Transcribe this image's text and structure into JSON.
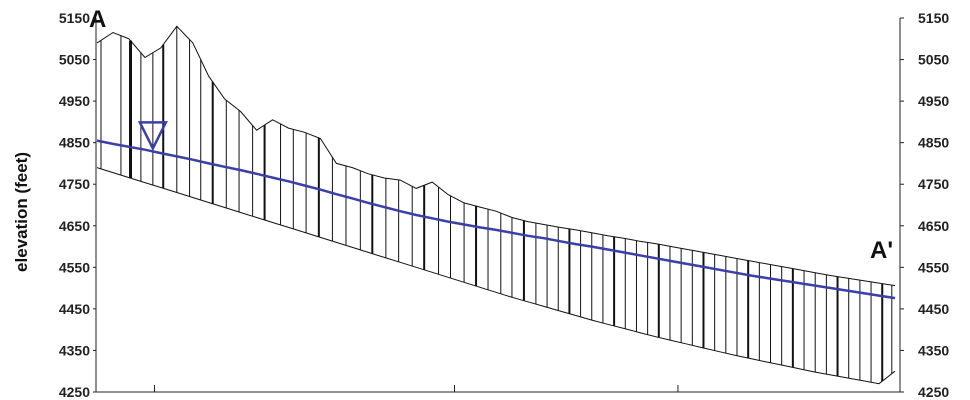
{
  "chart_data": {
    "type": "line",
    "title": "",
    "ylabel": "elevation (feet)",
    "ylim": [
      4250,
      5150
    ],
    "yticks": [
      4250,
      4350,
      4450,
      4550,
      4650,
      4750,
      4850,
      4950,
      5050,
      5150
    ],
    "right_axis": true,
    "grid": false,
    "endpoints": {
      "start": "A",
      "end": "A'"
    },
    "water_table_symbol": "inverted-triangle",
    "colors": {
      "water_table": "#3b3fa8",
      "profile": "#111111",
      "axis": "#222222"
    },
    "x": [
      0,
      2,
      4,
      6,
      8,
      10,
      12,
      14,
      16,
      18,
      20,
      22,
      24,
      26,
      28,
      30,
      32,
      34,
      36,
      38,
      40,
      42,
      44,
      46,
      48,
      50,
      52,
      54,
      56,
      58,
      60,
      62,
      64,
      66,
      68,
      70,
      72,
      74,
      76,
      78,
      80,
      82,
      84,
      86,
      88,
      90,
      92,
      94,
      96,
      98,
      100
    ],
    "series": [
      {
        "role": "ground-surface",
        "values": [
          5090,
          5115,
          5100,
          5055,
          5078,
          5130,
          5090,
          5010,
          4955,
          4925,
          4880,
          4905,
          4885,
          4875,
          4860,
          4800,
          4790,
          4775,
          4765,
          4760,
          4740,
          4755,
          4725,
          4705,
          4695,
          4685,
          4670,
          4660,
          4653,
          4646,
          4640,
          4633,
          4626,
          4620,
          4613,
          4607,
          4600,
          4593,
          4586,
          4579,
          4572,
          4565,
          4558,
          4551,
          4544,
          4537,
          4530,
          4524,
          4518,
          4512,
          4506
        ]
      },
      {
        "role": "water-table",
        "values": [
          4855,
          4847,
          4840,
          4833,
          4825,
          4817,
          4809,
          4800,
          4792,
          4784,
          4775,
          4766,
          4757,
          4747,
          4737,
          4726,
          4716,
          4705,
          4695,
          4685,
          4676,
          4668,
          4660,
          4653,
          4646,
          4640,
          4633,
          4626,
          4620,
          4613,
          4606,
          4600,
          4593,
          4586,
          4579,
          4572,
          4565,
          4558,
          4551,
          4544,
          4537,
          4530,
          4524,
          4518,
          4512,
          4506,
          4500,
          4494,
          4488,
          4482,
          4476
        ]
      },
      {
        "role": "screen-bottom",
        "values": [
          4790,
          4778,
          4766,
          4754,
          4742,
          4730,
          4718,
          4706,
          4694,
          4682,
          4670,
          4658,
          4646,
          4634,
          4622,
          4610,
          4598,
          4586,
          4574,
          4562,
          4550,
          4538,
          4526,
          4514,
          4502,
          4490,
          4478,
          4467,
          4456,
          4445,
          4434,
          4423,
          4413,
          4403,
          4393,
          4383,
          4374,
          4365,
          4356,
          4347,
          4338,
          4330,
          4322,
          4314,
          4306,
          4298,
          4291,
          4284,
          4277,
          4270,
          4300
        ]
      }
    ],
    "wells": [
      {
        "x": 0.5,
        "w": 1
      },
      {
        "x": 3,
        "w": 1
      },
      {
        "x": 4.2,
        "w": 3
      },
      {
        "x": 5.5,
        "w": 1
      },
      {
        "x": 7,
        "w": 1
      },
      {
        "x": 8.3,
        "w": 2
      },
      {
        "x": 10,
        "w": 1
      },
      {
        "x": 11.6,
        "w": 1
      },
      {
        "x": 13,
        "w": 1
      },
      {
        "x": 14.5,
        "w": 2
      },
      {
        "x": 16.2,
        "w": 1
      },
      {
        "x": 17.8,
        "w": 1
      },
      {
        "x": 19.5,
        "w": 1
      },
      {
        "x": 21,
        "w": 2
      },
      {
        "x": 23,
        "w": 1
      },
      {
        "x": 24.6,
        "w": 1
      },
      {
        "x": 26.2,
        "w": 1
      },
      {
        "x": 27.8,
        "w": 2
      },
      {
        "x": 29.5,
        "w": 1
      },
      {
        "x": 31.2,
        "w": 1
      },
      {
        "x": 33,
        "w": 1
      },
      {
        "x": 34.5,
        "w": 2
      },
      {
        "x": 36.2,
        "w": 1
      },
      {
        "x": 37.8,
        "w": 1
      },
      {
        "x": 39.5,
        "w": 1
      },
      {
        "x": 41,
        "w": 2
      },
      {
        "x": 42.8,
        "w": 1
      },
      {
        "x": 44.3,
        "w": 1
      },
      {
        "x": 46,
        "w": 1
      },
      {
        "x": 47.5,
        "w": 2
      },
      {
        "x": 49,
        "w": 1
      },
      {
        "x": 50.6,
        "w": 1
      },
      {
        "x": 52,
        "w": 1
      },
      {
        "x": 53.5,
        "w": 2
      },
      {
        "x": 55,
        "w": 1
      },
      {
        "x": 56.4,
        "w": 1
      },
      {
        "x": 57.8,
        "w": 1
      },
      {
        "x": 59.2,
        "w": 2
      },
      {
        "x": 60.6,
        "w": 1
      },
      {
        "x": 62,
        "w": 1
      },
      {
        "x": 63.4,
        "w": 1
      },
      {
        "x": 64.8,
        "w": 2
      },
      {
        "x": 66.2,
        "w": 1
      },
      {
        "x": 67.6,
        "w": 1
      },
      {
        "x": 69,
        "w": 1
      },
      {
        "x": 70.4,
        "w": 2
      },
      {
        "x": 71.8,
        "w": 1
      },
      {
        "x": 73.2,
        "w": 1
      },
      {
        "x": 74.6,
        "w": 1
      },
      {
        "x": 76,
        "w": 2
      },
      {
        "x": 77.4,
        "w": 1
      },
      {
        "x": 78.8,
        "w": 1
      },
      {
        "x": 80.2,
        "w": 1
      },
      {
        "x": 81.6,
        "w": 2
      },
      {
        "x": 83,
        "w": 1
      },
      {
        "x": 84.4,
        "w": 1
      },
      {
        "x": 85.8,
        "w": 1
      },
      {
        "x": 87.2,
        "w": 2
      },
      {
        "x": 88.6,
        "w": 1
      },
      {
        "x": 90,
        "w": 1
      },
      {
        "x": 91.4,
        "w": 1
      },
      {
        "x": 92.8,
        "w": 2
      },
      {
        "x": 94.2,
        "w": 1
      },
      {
        "x": 95.6,
        "w": 1
      },
      {
        "x": 97,
        "w": 1
      },
      {
        "x": 98.4,
        "w": 2
      },
      {
        "x": 99.6,
        "w": 1
      }
    ]
  }
}
